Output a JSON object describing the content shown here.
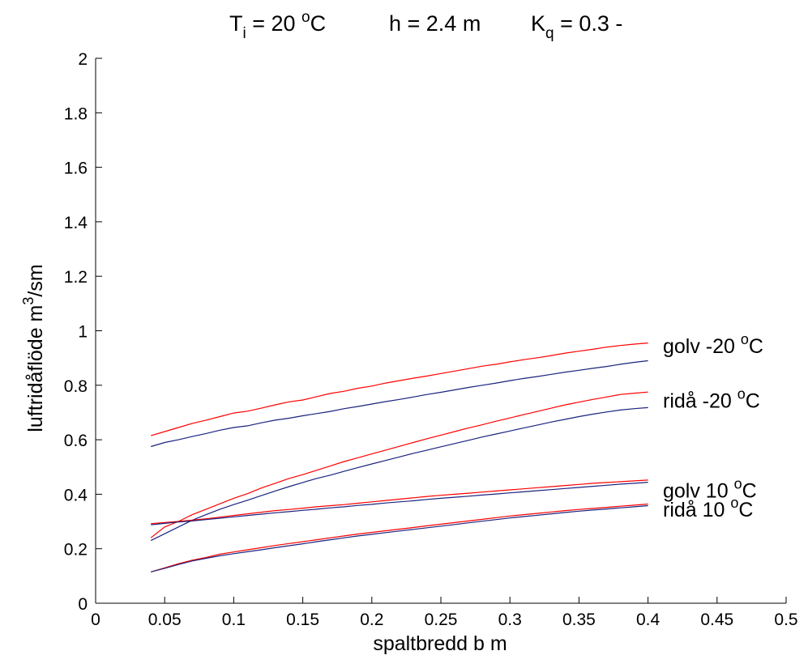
{
  "chart_data": {
    "type": "line",
    "title": {
      "ti_main": "T",
      "ti_sub": "i",
      "ti_rest": " = 20 ",
      "ti_sup": "o",
      "ti_unit": "C",
      "h": "h = 2.4 m",
      "kq_main": "K",
      "kq_sub": "q",
      "kq_rest": " = 0.3 -"
    },
    "xlabel": "spaltbredd b  m",
    "ylabel": {
      "main": "luftridåflöde  m",
      "sup": "3",
      "rest": "/sm"
    },
    "xlim": [
      0,
      0.5
    ],
    "ylim": [
      0,
      2
    ],
    "xticks": [
      "0",
      "0.05",
      "0.1",
      "0.15",
      "0.2",
      "0.25",
      "0.3",
      "0.35",
      "0.4",
      "0.45",
      "0.5"
    ],
    "yticks": [
      "0",
      "0.2",
      "0.4",
      "0.6",
      "0.8",
      "1",
      "1.2",
      "1.4",
      "1.6",
      "1.8",
      "2"
    ],
    "grid": false,
    "x": [
      0.04,
      0.05,
      0.06,
      0.07,
      0.08,
      0.09,
      0.1,
      0.11,
      0.12,
      0.13,
      0.14,
      0.15,
      0.16,
      0.17,
      0.18,
      0.19,
      0.2,
      0.21,
      0.22,
      0.23,
      0.24,
      0.25,
      0.26,
      0.27,
      0.28,
      0.29,
      0.3,
      0.31,
      0.32,
      0.33,
      0.34,
      0.35,
      0.36,
      0.37,
      0.38,
      0.39,
      0.4
    ],
    "series": [
      {
        "group": "golv -20",
        "color": "#ff0000",
        "values": [
          0.615,
          0.63,
          0.645,
          0.66,
          0.672,
          0.685,
          0.698,
          0.705,
          0.716,
          0.728,
          0.739,
          0.746,
          0.758,
          0.77,
          0.778,
          0.789,
          0.797,
          0.808,
          0.817,
          0.826,
          0.834,
          0.843,
          0.852,
          0.861,
          0.87,
          0.877,
          0.886,
          0.894,
          0.901,
          0.909,
          0.918,
          0.925,
          0.932,
          0.94,
          0.946,
          0.951,
          0.955
        ]
      },
      {
        "group": "golv -20",
        "color": "#1a237e",
        "values": [
          0.575,
          0.59,
          0.6,
          0.612,
          0.623,
          0.635,
          0.645,
          0.651,
          0.662,
          0.672,
          0.679,
          0.688,
          0.696,
          0.704,
          0.714,
          0.722,
          0.731,
          0.74,
          0.748,
          0.757,
          0.766,
          0.774,
          0.783,
          0.792,
          0.8,
          0.808,
          0.817,
          0.825,
          0.832,
          0.84,
          0.848,
          0.855,
          0.862,
          0.869,
          0.877,
          0.884,
          0.89
        ]
      },
      {
        "group": "ridå -20",
        "color": "#ff0000",
        "values": [
          0.24,
          0.28,
          0.3,
          0.325,
          0.345,
          0.365,
          0.385,
          0.402,
          0.423,
          0.44,
          0.458,
          0.472,
          0.488,
          0.504,
          0.52,
          0.534,
          0.548,
          0.562,
          0.576,
          0.59,
          0.604,
          0.617,
          0.63,
          0.643,
          0.655,
          0.668,
          0.68,
          0.692,
          0.704,
          0.716,
          0.728,
          0.738,
          0.748,
          0.757,
          0.766,
          0.771,
          0.775
        ]
      },
      {
        "group": "ridå -20",
        "color": "#1a237e",
        "values": [
          0.23,
          0.255,
          0.28,
          0.305,
          0.325,
          0.345,
          0.362,
          0.378,
          0.395,
          0.412,
          0.428,
          0.443,
          0.458,
          0.47,
          0.484,
          0.498,
          0.511,
          0.524,
          0.537,
          0.55,
          0.562,
          0.574,
          0.586,
          0.598,
          0.61,
          0.621,
          0.632,
          0.643,
          0.654,
          0.665,
          0.675,
          0.685,
          0.694,
          0.702,
          0.709,
          0.714,
          0.718
        ]
      },
      {
        "group": "golv 10",
        "color": "#ff0000",
        "values": [
          0.292,
          0.296,
          0.3,
          0.305,
          0.31,
          0.316,
          0.322,
          0.328,
          0.334,
          0.34,
          0.344,
          0.349,
          0.354,
          0.358,
          0.362,
          0.367,
          0.372,
          0.377,
          0.382,
          0.387,
          0.392,
          0.396,
          0.4,
          0.404,
          0.408,
          0.412,
          0.416,
          0.42,
          0.424,
          0.428,
          0.432,
          0.436,
          0.44,
          0.443,
          0.446,
          0.449,
          0.452
        ]
      },
      {
        "group": "golv 10",
        "color": "#1a237e",
        "values": [
          0.288,
          0.293,
          0.298,
          0.302,
          0.307,
          0.312,
          0.317,
          0.322,
          0.327,
          0.332,
          0.336,
          0.341,
          0.345,
          0.35,
          0.354,
          0.359,
          0.363,
          0.368,
          0.372,
          0.376,
          0.381,
          0.385,
          0.389,
          0.393,
          0.397,
          0.401,
          0.405,
          0.409,
          0.413,
          0.417,
          0.421,
          0.425,
          0.429,
          0.433,
          0.437,
          0.44,
          0.444
        ]
      },
      {
        "group": "ridå 10",
        "color": "#ff0000",
        "values": [
          0.115,
          0.13,
          0.145,
          0.158,
          0.168,
          0.18,
          0.188,
          0.196,
          0.204,
          0.212,
          0.219,
          0.226,
          0.233,
          0.24,
          0.247,
          0.254,
          0.26,
          0.266,
          0.272,
          0.278,
          0.284,
          0.29,
          0.296,
          0.302,
          0.308,
          0.314,
          0.32,
          0.325,
          0.33,
          0.335,
          0.34,
          0.344,
          0.348,
          0.352,
          0.356,
          0.36,
          0.364
        ]
      },
      {
        "group": "ridå 10",
        "color": "#1a237e",
        "values": [
          0.115,
          0.128,
          0.142,
          0.155,
          0.165,
          0.174,
          0.182,
          0.189,
          0.196,
          0.204,
          0.211,
          0.218,
          0.226,
          0.233,
          0.24,
          0.247,
          0.253,
          0.259,
          0.265,
          0.271,
          0.277,
          0.283,
          0.289,
          0.295,
          0.301,
          0.307,
          0.313,
          0.318,
          0.323,
          0.328,
          0.333,
          0.338,
          0.342,
          0.346,
          0.35,
          0.354,
          0.358
        ]
      }
    ],
    "annotations": [
      {
        "main": "golv -20 ",
        "sup": "o",
        "unit": "C",
        "y": 0.945
      },
      {
        "main": "ridå -20 ",
        "sup": "o",
        "unit": "C",
        "y": 0.745
      },
      {
        "main": "golv 10 ",
        "sup": "o",
        "unit": "C",
        "y": 0.415
      },
      {
        "main": "ridå 10 ",
        "sup": "o",
        "unit": "C",
        "y": 0.345
      }
    ]
  }
}
